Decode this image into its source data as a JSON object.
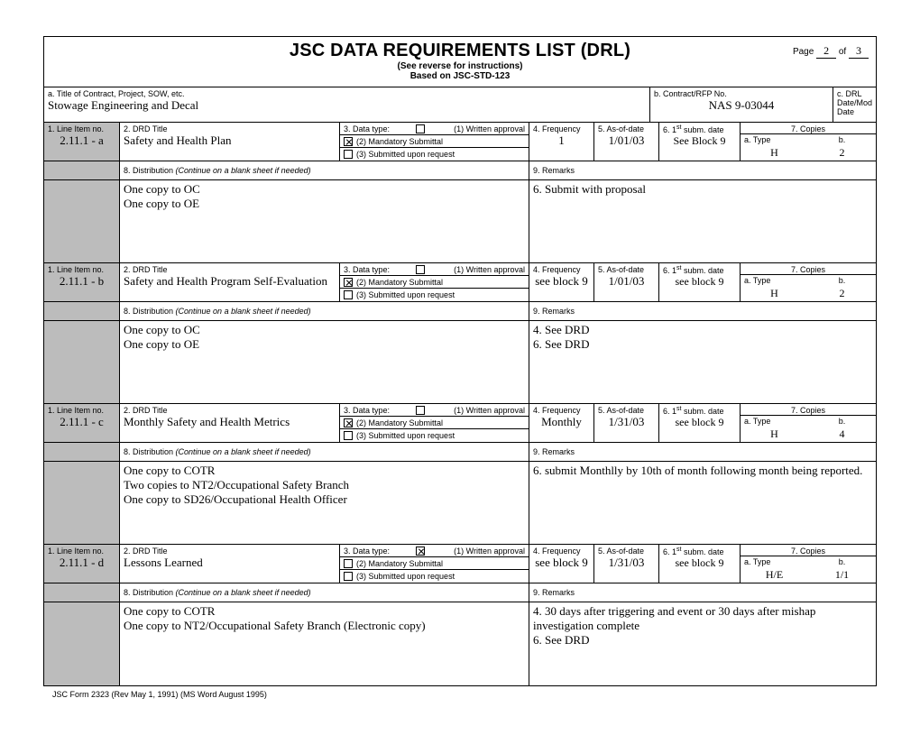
{
  "header": {
    "title": "JSC DATA REQUIREMENTS LIST (DRL)",
    "sub1": "(See reverse for instructions)",
    "sub2": "Based on JSC-STD-123",
    "page_label": "Page",
    "page_current": "2",
    "page_of_label": "of",
    "page_total": "3"
  },
  "contract": {
    "lbl_a": "a.  Title of Contract, Project, SOW, etc.",
    "val_a": "Stowage Engineering  and Decal",
    "lbl_b": "b.  Contract/RFP No.",
    "val_b": "NAS 9-03044",
    "lbl_c": "c.  DRL Date/Mod Date",
    "val_c": ""
  },
  "labels": {
    "line": "1.  Line Item no.",
    "drd": "2.  DRD Title",
    "data": "3.  Data type:",
    "written": "(1) Written approval",
    "mandatory": "(2) Mandatory Submittal",
    "submitted": "(3) Submitted upon request",
    "freq": "4.  Frequency",
    "aod": "5.  As-of-date",
    "subm": "6.  1",
    "subm_post": " subm. date",
    "copies": "7.  Copies",
    "copies_a": "a.  Type",
    "copies_b": "b.",
    "dist": "8.  Distribution",
    "dist_note": " (Continue on a blank sheet if needed)",
    "rem": "9.  Remarks"
  },
  "items": [
    {
      "line": "2.11.1 - a",
      "title": "Safety and Health Plan",
      "check1": false,
      "check2": true,
      "check3": false,
      "freq": "1",
      "aod": "1/01/03",
      "subm": "See Block 9",
      "ctype": "H",
      "cnum": "2",
      "dist": [
        "One copy to OC",
        "One copy to OE"
      ],
      "rem": [
        "6.  Submit with proposal"
      ]
    },
    {
      "line": "2.11.1 - b",
      "title": "Safety and Health Program Self-Evaluation",
      "check1": false,
      "check2": true,
      "check3": false,
      "freq": "see block 9",
      "aod": "1/01/03",
      "subm": "see block 9",
      "ctype": "H",
      "cnum": "2",
      "dist": [
        "One copy to OC",
        "One copy to OE"
      ],
      "rem": [
        "4.  See DRD",
        "6.  See DRD"
      ]
    },
    {
      "line": "2.11.1 - c",
      "title": "Monthly Safety and Health Metrics",
      "check1": false,
      "check2": true,
      "check3": false,
      "freq": "Monthly",
      "aod": "1/31/03",
      "subm": "see block 9",
      "ctype": "H",
      "cnum": "4",
      "dist": [
        "One copy to COTR",
        "Two copies to NT2/Occupational Safety Branch",
        "One copy to SD26/Occupational Health Officer"
      ],
      "rem": [
        "6.  submit Monthlly by 10th of month following month being reported."
      ]
    },
    {
      "line": "2.11.1 - d",
      "title": "Lessons Learned",
      "check1": true,
      "check2": false,
      "check3": false,
      "freq": "see block 9",
      "aod": "1/31/03",
      "subm": "see block 9",
      "ctype": "H/E",
      "cnum": "1/1",
      "dist": [
        "One copy to COTR",
        "One copy to NT2/Occupational Safety Branch  (Electronic copy)"
      ],
      "rem": [
        "4.  30 days after triggering and event or 30 days after mishap investigation complete",
        "6.  See DRD"
      ]
    }
  ],
  "footer": "JSC Form 2323 (Rev May 1, 1991) (MS Word August 1995)"
}
